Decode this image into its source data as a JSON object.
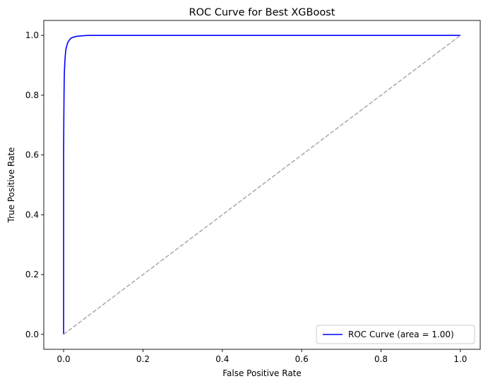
{
  "chart_data": {
    "type": "line",
    "title": "ROC Curve for Best XGBoost",
    "xlabel": "False Positive Rate",
    "ylabel": "True Positive Rate",
    "xlim": [
      -0.05,
      1.05
    ],
    "ylim": [
      -0.05,
      1.05
    ],
    "xticks": [
      0.0,
      0.2,
      0.4,
      0.6,
      0.8,
      1.0
    ],
    "yticks": [
      0.0,
      0.2,
      0.4,
      0.6,
      0.8,
      1.0
    ],
    "xtick_labels": [
      "0.0",
      "0.2",
      "0.4",
      "0.6",
      "0.8",
      "1.0"
    ],
    "ytick_labels": [
      "0.0",
      "0.2",
      "0.4",
      "0.6",
      "0.8",
      "1.0"
    ],
    "grid": false,
    "legend_position": "lower-right",
    "series": [
      {
        "name": "ROC Curve (area = 1.00)",
        "color": "#0000ff",
        "style": "solid",
        "x": [
          0.0,
          0.0,
          0.0005,
          0.001,
          0.0015,
          0.002,
          0.003,
          0.004,
          0.005,
          0.006,
          0.008,
          0.01,
          0.012,
          0.015,
          0.018,
          0.022,
          0.027,
          0.033,
          0.04,
          0.05,
          0.062,
          0.08,
          0.2,
          0.5,
          0.8,
          1.0
        ],
        "y": [
          0.0,
          0.6,
          0.72,
          0.8,
          0.85,
          0.88,
          0.91,
          0.93,
          0.945,
          0.955,
          0.965,
          0.975,
          0.98,
          0.985,
          0.99,
          0.993,
          0.995,
          0.997,
          0.998,
          0.999,
          1.0,
          1.0,
          1.0,
          1.0,
          1.0,
          1.0
        ]
      },
      {
        "name": "",
        "color": "#a9a9a9",
        "style": "dashed",
        "x": [
          0.0,
          1.0
        ],
        "y": [
          0.0,
          1.0
        ]
      }
    ]
  }
}
